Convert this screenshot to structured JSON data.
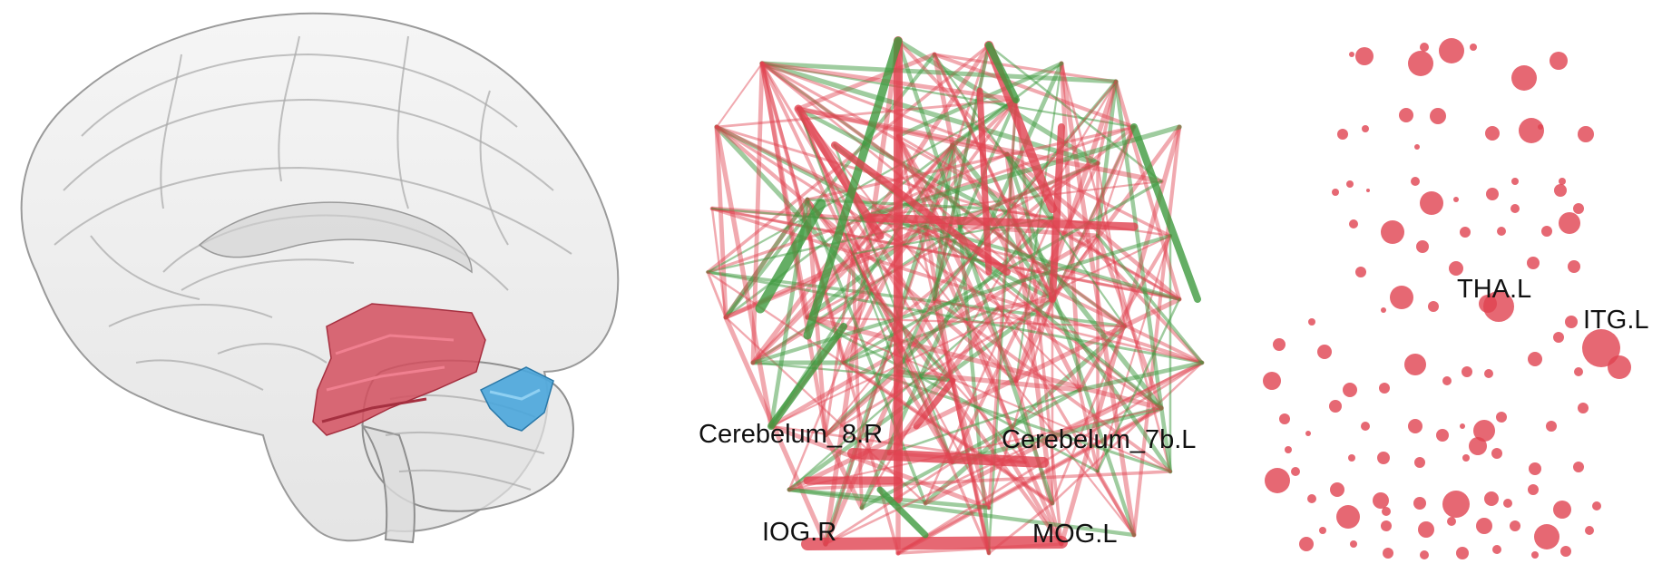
{
  "colors": {
    "positive": "#e04250",
    "negative": "#3f9a3f",
    "region_red": "#d4505f",
    "region_blue": "#4aa6dc",
    "node": "#e04250",
    "brain_outline": "#9a9a9a",
    "brain_fill": "#e6e6e6"
  },
  "brain_panel": {
    "regions": [
      {
        "name": "red-region",
        "color": "#d4505f"
      },
      {
        "name": "blue-region",
        "color": "#4aa6dc"
      }
    ]
  },
  "network_panel": {
    "labels": [
      {
        "id": "cerebelum8r",
        "text": "Cerebelum_8.R"
      },
      {
        "id": "cerebelum7bl",
        "text": "Cerebelum_7b.L"
      },
      {
        "id": "iogr",
        "text": "IOG.R"
      },
      {
        "id": "mogl",
        "text": "MOG.L"
      }
    ]
  },
  "nodes_panel": {
    "labels": [
      {
        "id": "thal",
        "text": "THA.L"
      },
      {
        "id": "itgl",
        "text": "ITG.L"
      }
    ]
  }
}
